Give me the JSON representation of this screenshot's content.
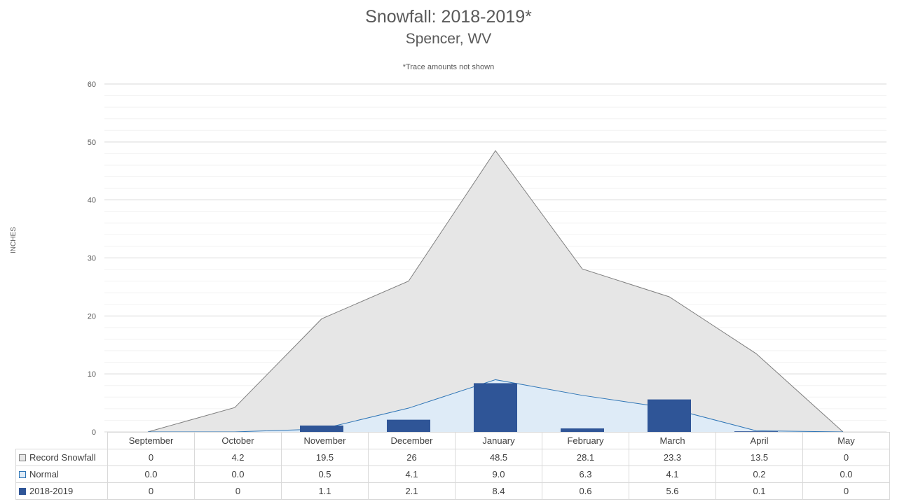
{
  "chart_data": {
    "type": "bar",
    "title": "Snowfall: 2018-2019*",
    "subtitle": "Spencer, WV",
    "note": "*Trace amounts not shown",
    "ylabel": "INCHES",
    "ylim": [
      0,
      60
    ],
    "yticks": [
      0,
      10,
      20,
      30,
      40,
      50,
      60
    ],
    "grid": true,
    "legend": "data-table",
    "categories": [
      "September",
      "October",
      "November",
      "December",
      "January",
      "February",
      "March",
      "April",
      "May"
    ],
    "series": [
      {
        "name": "Record Snowfall",
        "kind": "area",
        "color": "#e6e6e6",
        "line_color": "#7f7f7f",
        "values": [
          0,
          4.2,
          19.5,
          26,
          48.5,
          28.1,
          23.3,
          13.5,
          0
        ],
        "labels": [
          "0",
          "4.2",
          "19.5",
          "26",
          "48.5",
          "28.1",
          "23.3",
          "13.5",
          "0"
        ]
      },
      {
        "name": "Normal",
        "kind": "area",
        "color": "#deebf7",
        "line_color": "#2e75b6",
        "values": [
          0.0,
          0.0,
          0.5,
          4.1,
          9.0,
          6.3,
          4.1,
          0.2,
          0.0
        ],
        "labels": [
          "0.0",
          "0.0",
          "0.5",
          "4.1",
          "9.0",
          "6.3",
          "4.1",
          "0.2",
          "0.0"
        ]
      },
      {
        "name": "2018-2019",
        "kind": "bar",
        "color": "#2f5597",
        "values": [
          0,
          0,
          1.1,
          2.1,
          8.4,
          0.6,
          5.6,
          0.1,
          0
        ],
        "labels": [
          "0",
          "0",
          "1.1",
          "2.1",
          "8.4",
          "0.6",
          "5.6",
          "0.1",
          "0"
        ]
      }
    ]
  }
}
